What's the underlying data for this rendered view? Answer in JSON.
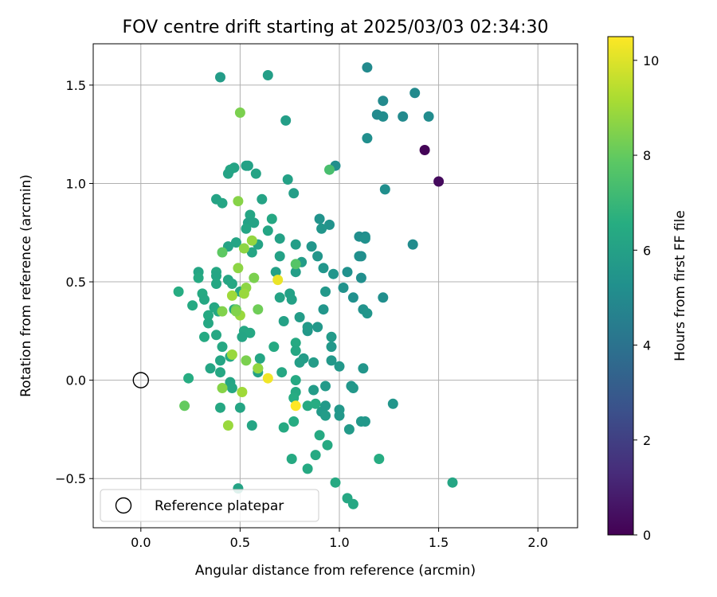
{
  "chart_data": {
    "type": "scatter",
    "title": "FOV centre drift starting at 2025/03/03 02:34:30",
    "xlabel": "Angular distance from reference (arcmin)",
    "ylabel": "Rotation from reference (arcmin)",
    "xlim": [
      -0.24,
      2.2
    ],
    "ylim": [
      -0.75,
      1.71
    ],
    "x_ticks": [
      0.0,
      0.5,
      1.0,
      1.5,
      2.0
    ],
    "x_tick_labels": [
      "0.0",
      "0.5",
      "1.0",
      "1.5",
      "2.0"
    ],
    "y_ticks": [
      -0.5,
      0.0,
      0.5,
      1.0,
      1.5
    ],
    "y_tick_labels": [
      "−0.5",
      "0.0",
      "0.5",
      "1.0",
      "1.5"
    ],
    "grid": true,
    "colormap": "viridis",
    "colorbar": {
      "label": "Hours from first FF file",
      "range": [
        0,
        10.5
      ],
      "ticks": [
        0,
        2,
        4,
        6,
        8,
        10
      ],
      "tick_labels": [
        "0",
        "2",
        "4",
        "6",
        "8",
        "10"
      ]
    },
    "reference": {
      "name": "Reference platepar",
      "x": 0.0,
      "y": 0.0
    },
    "legend": {
      "position": "lower-left",
      "entries": [
        "Reference platepar"
      ]
    },
    "points": [
      [
        1.43,
        1.17,
        0.1
      ],
      [
        1.5,
        1.01,
        0.3
      ],
      [
        1.14,
        1.59,
        5.0
      ],
      [
        1.38,
        1.46,
        5.0
      ],
      [
        1.22,
        1.42,
        5.0
      ],
      [
        1.19,
        1.35,
        5.0
      ],
      [
        1.22,
        1.34,
        5.1
      ],
      [
        1.32,
        1.34,
        5.0
      ],
      [
        1.45,
        1.34,
        5.1
      ],
      [
        1.14,
        1.23,
        5.2
      ],
      [
        1.23,
        0.97,
        5.2
      ],
      [
        1.37,
        0.69,
        5.1
      ],
      [
        0.98,
        1.09,
        5.2
      ],
      [
        1.1,
        0.73,
        5.2
      ],
      [
        1.13,
        0.73,
        5.1
      ],
      [
        1.13,
        0.72,
        5.3
      ],
      [
        1.1,
        0.63,
        5.3
      ],
      [
        1.11,
        0.63,
        5.2
      ],
      [
        1.04,
        0.55,
        5.3
      ],
      [
        1.11,
        0.52,
        5.2
      ],
      [
        1.02,
        0.47,
        5.4
      ],
      [
        1.07,
        0.42,
        5.3
      ],
      [
        1.22,
        0.42,
        5.2
      ],
      [
        1.12,
        0.36,
        5.4
      ],
      [
        1.14,
        0.34,
        5.5
      ],
      [
        0.95,
        0.79,
        5.4
      ],
      [
        0.9,
        0.82,
        5.4
      ],
      [
        0.91,
        0.77,
        5.5
      ],
      [
        0.86,
        0.68,
        5.5
      ],
      [
        0.89,
        0.63,
        5.5
      ],
      [
        0.97,
        0.54,
        5.5
      ],
      [
        0.92,
        0.57,
        5.5
      ],
      [
        0.93,
        0.45,
        5.6
      ],
      [
        0.92,
        0.36,
        5.5
      ],
      [
        0.89,
        0.27,
        5.6
      ],
      [
        0.84,
        0.25,
        5.6
      ],
      [
        0.84,
        0.27,
        5.7
      ],
      [
        0.96,
        0.22,
        5.7
      ],
      [
        0.96,
        0.17,
        5.6
      ],
      [
        0.96,
        0.1,
        5.6
      ],
      [
        1.0,
        0.07,
        5.6
      ],
      [
        1.12,
        0.06,
        5.5
      ],
      [
        1.06,
        -0.03,
        5.5
      ],
      [
        1.07,
        -0.04,
        5.6
      ],
      [
        1.27,
        -0.12,
        5.5
      ],
      [
        1.0,
        -0.15,
        5.6
      ],
      [
        1.0,
        -0.18,
        5.6
      ],
      [
        1.11,
        -0.21,
        5.6
      ],
      [
        1.13,
        -0.21,
        5.6
      ],
      [
        1.05,
        -0.25,
        5.7
      ],
      [
        0.91,
        -0.16,
        5.7
      ],
      [
        0.93,
        -0.13,
        5.7
      ],
      [
        0.93,
        -0.18,
        5.8
      ],
      [
        0.93,
        -0.03,
        5.7
      ],
      [
        0.87,
        -0.05,
        5.8
      ],
      [
        0.87,
        0.09,
        5.8
      ],
      [
        0.82,
        0.11,
        5.8
      ],
      [
        0.8,
        0.09,
        5.9
      ],
      [
        0.8,
        0.32,
        5.8
      ],
      [
        0.81,
        0.6,
        5.8
      ],
      [
        0.78,
        0.55,
        5.9
      ],
      [
        0.78,
        0.69,
        5.9
      ],
      [
        0.77,
        0.95,
        5.9
      ],
      [
        0.73,
        1.32,
        5.9
      ],
      [
        0.64,
        1.55,
        5.9
      ],
      [
        0.74,
        1.02,
        6.0
      ],
      [
        0.7,
        0.72,
        6.0
      ],
      [
        0.7,
        0.63,
        6.0
      ],
      [
        0.68,
        0.55,
        6.0
      ],
      [
        0.75,
        0.44,
        6.0
      ],
      [
        0.76,
        0.41,
        6.0
      ],
      [
        0.72,
        0.3,
        6.0
      ],
      [
        0.7,
        0.42,
        6.1
      ],
      [
        0.4,
        1.54,
        5.8
      ],
      [
        0.47,
        1.08,
        6.1
      ],
      [
        0.45,
        1.07,
        6.2
      ],
      [
        0.44,
        1.05,
        6.1
      ],
      [
        0.53,
        1.09,
        6.0
      ],
      [
        0.54,
        1.09,
        6.0
      ],
      [
        0.58,
        1.05,
        6.1
      ],
      [
        0.38,
        0.92,
        6.1
      ],
      [
        0.41,
        0.9,
        6.2
      ],
      [
        0.61,
        0.92,
        6.1
      ],
      [
        0.55,
        0.84,
        6.2
      ],
      [
        0.54,
        0.8,
        6.0
      ],
      [
        0.57,
        0.8,
        6.1
      ],
      [
        0.53,
        0.77,
        6.2
      ],
      [
        0.48,
        0.7,
        6.2
      ],
      [
        0.44,
        0.68,
        6.1
      ],
      [
        0.56,
        0.65,
        6.2
      ],
      [
        0.59,
        0.69,
        6.1
      ],
      [
        0.66,
        0.82,
        6.3
      ],
      [
        0.64,
        0.76,
        6.2
      ],
      [
        0.29,
        0.55,
        6.2
      ],
      [
        0.29,
        0.52,
        6.4
      ],
      [
        0.38,
        0.55,
        6.3
      ],
      [
        0.38,
        0.53,
        6.2
      ],
      [
        0.38,
        0.49,
        6.3
      ],
      [
        0.44,
        0.51,
        6.2
      ],
      [
        0.46,
        0.49,
        6.3
      ],
      [
        0.5,
        0.45,
        6.3
      ],
      [
        0.19,
        0.45,
        6.5
      ],
      [
        0.26,
        0.38,
        6.4
      ],
      [
        0.31,
        0.44,
        6.4
      ],
      [
        0.32,
        0.41,
        6.3
      ],
      [
        0.34,
        0.33,
        6.4
      ],
      [
        0.34,
        0.29,
        6.3
      ],
      [
        0.37,
        0.37,
        6.3
      ],
      [
        0.47,
        0.36,
        6.3
      ],
      [
        0.39,
        0.35,
        6.4
      ],
      [
        0.32,
        0.22,
        6.4
      ],
      [
        0.38,
        0.23,
        6.3
      ],
      [
        0.41,
        0.17,
        6.3
      ],
      [
        0.45,
        0.12,
        6.4
      ],
      [
        0.52,
        0.25,
        6.3
      ],
      [
        0.55,
        0.24,
        6.3
      ],
      [
        0.51,
        0.22,
        6.2
      ],
      [
        0.6,
        0.11,
        6.2
      ],
      [
        0.59,
        0.04,
        6.0
      ],
      [
        0.59,
        0.06,
        6.0
      ],
      [
        0.35,
        0.06,
        6.2
      ],
      [
        0.4,
        0.1,
        6.2
      ],
      [
        0.4,
        0.04,
        6.3
      ],
      [
        0.45,
        -0.01,
        6.2
      ],
      [
        0.46,
        -0.04,
        6.3
      ],
      [
        0.24,
        0.01,
        6.5
      ],
      [
        0.4,
        -0.14,
        6.3
      ],
      [
        0.5,
        -0.14,
        6.2
      ],
      [
        0.56,
        -0.23,
        6.2
      ],
      [
        0.49,
        -0.55,
        6.1
      ],
      [
        0.71,
        0.04,
        6.3
      ],
      [
        0.67,
        0.17,
        6.4
      ],
      [
        0.78,
        0.19,
        6.4
      ],
      [
        0.78,
        0.15,
        6.3
      ],
      [
        0.78,
        0.0,
        6.4
      ],
      [
        0.78,
        -0.06,
        6.4
      ],
      [
        0.77,
        -0.09,
        6.5
      ],
      [
        0.77,
        -0.21,
        6.5
      ],
      [
        0.72,
        -0.24,
        6.4
      ],
      [
        0.76,
        -0.4,
        6.4
      ],
      [
        0.84,
        -0.45,
        6.4
      ],
      [
        0.84,
        -0.13,
        6.4
      ],
      [
        0.88,
        -0.12,
        6.5
      ],
      [
        0.88,
        -0.38,
        6.4
      ],
      [
        0.9,
        -0.28,
        6.4
      ],
      [
        0.94,
        -0.33,
        6.4
      ],
      [
        0.98,
        -0.52,
        6.4
      ],
      [
        1.04,
        -0.6,
        6.3
      ],
      [
        1.07,
        -0.63,
        6.3
      ],
      [
        1.2,
        -0.4,
        6.5
      ],
      [
        1.57,
        -0.52,
        6.2
      ],
      [
        0.5,
        1.36,
        8.4
      ],
      [
        0.95,
        1.07,
        7.4
      ],
      [
        0.49,
        0.91,
        8.6
      ],
      [
        0.41,
        0.65,
        7.9
      ],
      [
        0.52,
        0.67,
        8.7
      ],
      [
        0.56,
        0.71,
        8.8
      ],
      [
        0.49,
        0.57,
        8.7
      ],
      [
        0.78,
        0.59,
        7.7
      ],
      [
        0.57,
        0.52,
        8.4
      ],
      [
        0.53,
        0.47,
        8.7
      ],
      [
        0.46,
        0.43,
        9.0
      ],
      [
        0.52,
        0.44,
        8.9
      ],
      [
        0.48,
        0.36,
        8.1
      ],
      [
        0.5,
        0.33,
        8.9
      ],
      [
        0.48,
        0.35,
        8.5
      ],
      [
        0.41,
        0.35,
        8.5
      ],
      [
        0.59,
        0.36,
        8.2
      ],
      [
        0.46,
        0.13,
        8.9
      ],
      [
        0.53,
        0.1,
        8.4
      ],
      [
        0.59,
        0.06,
        8.8
      ],
      [
        0.41,
        -0.04,
        8.6
      ],
      [
        0.51,
        -0.06,
        9.0
      ],
      [
        0.44,
        -0.23,
        8.9
      ],
      [
        0.22,
        -0.13,
        8.0
      ],
      [
        0.69,
        0.51,
        10.2
      ],
      [
        0.64,
        0.01,
        10.3
      ],
      [
        0.78,
        -0.13,
        10.5
      ]
    ]
  }
}
